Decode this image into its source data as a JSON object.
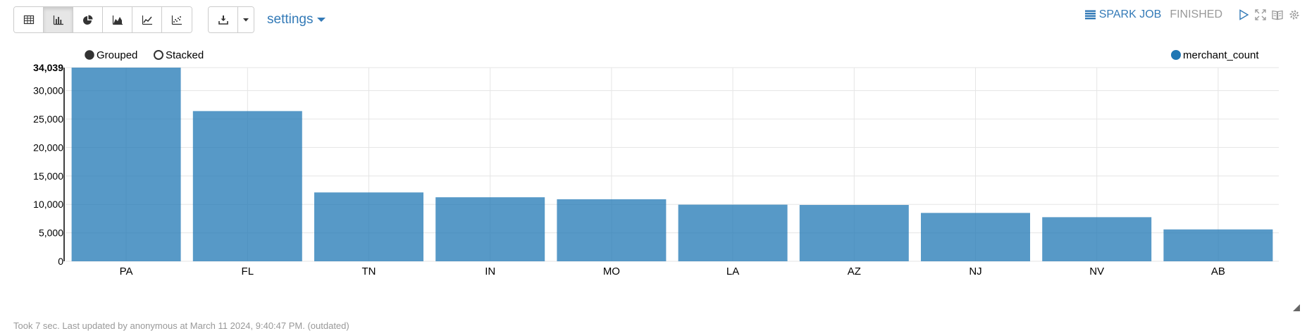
{
  "toolbar": {
    "view_buttons": [
      {
        "name": "table-view-button",
        "icon": "table-icon"
      },
      {
        "name": "bar-chart-view-button",
        "icon": "bar-chart-icon",
        "active": true
      },
      {
        "name": "pie-chart-view-button",
        "icon": "pie-chart-icon"
      },
      {
        "name": "area-chart-view-button",
        "icon": "area-chart-icon"
      },
      {
        "name": "line-chart-view-button",
        "icon": "line-chart-icon"
      },
      {
        "name": "scatter-chart-view-button",
        "icon": "scatter-chart-icon"
      }
    ],
    "download_icon": "download-icon",
    "settings_label": "settings"
  },
  "status": {
    "job_label": "SPARK JOB",
    "state": "FINISHED",
    "accent": "#337ab7"
  },
  "chart_data": {
    "type": "bar",
    "categories": [
      "PA",
      "FL",
      "TN",
      "IN",
      "MO",
      "LA",
      "AZ",
      "NJ",
      "NV",
      "AB"
    ],
    "series": [
      {
        "name": "merchant_count",
        "color": "#1f77b4",
        "values": [
          34039,
          26400,
          12100,
          11250,
          10900,
          9950,
          9900,
          8500,
          7750,
          5600
        ]
      }
    ],
    "yticks": [
      "0",
      "5,000",
      "10,000",
      "15,000",
      "20,000",
      "25,000",
      "30,000"
    ],
    "ymax_label": "34,039",
    "ylim": [
      0,
      34039
    ],
    "grid": true,
    "legend_position": "top-right",
    "modes": [
      "Grouped",
      "Stacked"
    ],
    "selected_mode": "Grouped"
  },
  "footer": {
    "text": "Took 7 sec. Last updated by anonymous at March 11 2024, 9:40:47 PM. (outdated)"
  }
}
